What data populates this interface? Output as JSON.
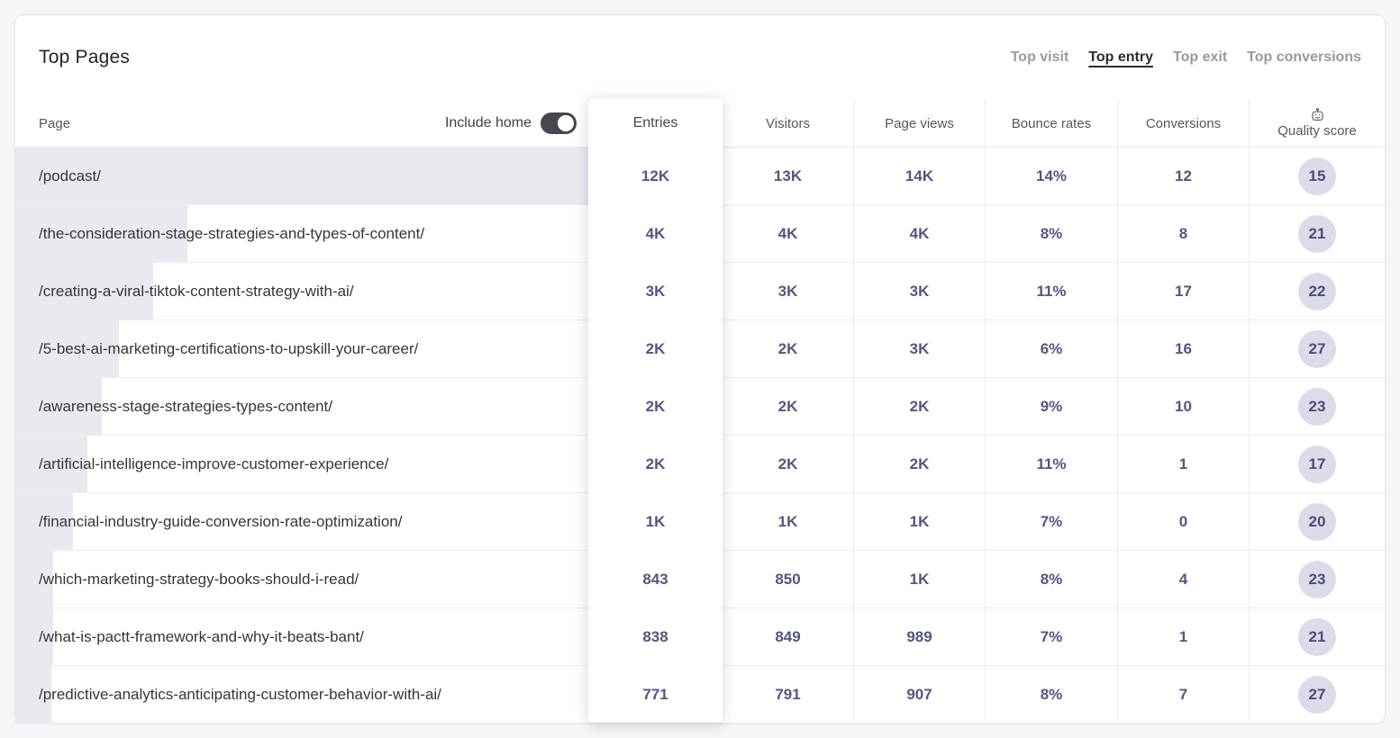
{
  "header": {
    "title": "Top Pages",
    "tabs": [
      {
        "label": "Top visit",
        "active": false
      },
      {
        "label": "Top entry",
        "active": true
      },
      {
        "label": "Top exit",
        "active": false
      },
      {
        "label": "Top conversions",
        "active": false
      }
    ]
  },
  "table": {
    "page_header": "Page",
    "include_home_label": "Include home",
    "include_home_state": "on",
    "columns": {
      "entries": "Entries",
      "visitors": "Visitors",
      "page_views": "Page views",
      "bounce_rates": "Bounce rates",
      "conversions": "Conversions",
      "quality_score": "Quality score"
    },
    "quality_score_icon": "robot-icon",
    "rows": [
      {
        "page": "/podcast/",
        "entries": "12K",
        "visitors": "13K",
        "page_views": "14K",
        "bounce_rate": "14%",
        "conversions": "12",
        "quality_score": "15",
        "bar_pct": 100
      },
      {
        "page": "/the-consideration-stage-strategies-and-types-of-content/",
        "entries": "4K",
        "visitors": "4K",
        "page_views": "4K",
        "bounce_rate": "8%",
        "conversions": "8",
        "quality_score": "21",
        "bar_pct": 30
      },
      {
        "page": "/creating-a-viral-tiktok-content-strategy-with-ai/",
        "entries": "3K",
        "visitors": "3K",
        "page_views": "3K",
        "bounce_rate": "11%",
        "conversions": "17",
        "quality_score": "22",
        "bar_pct": 24
      },
      {
        "page": "/5-best-ai-marketing-certifications-to-upskill-your-career/",
        "entries": "2K",
        "visitors": "2K",
        "page_views": "3K",
        "bounce_rate": "6%",
        "conversions": "16",
        "quality_score": "27",
        "bar_pct": 18
      },
      {
        "page": "/awareness-stage-strategies-types-content/",
        "entries": "2K",
        "visitors": "2K",
        "page_views": "2K",
        "bounce_rate": "9%",
        "conversions": "10",
        "quality_score": "23",
        "bar_pct": 15
      },
      {
        "page": "/artificial-intelligence-improve-customer-experience/",
        "entries": "2K",
        "visitors": "2K",
        "page_views": "2K",
        "bounce_rate": "11%",
        "conversions": "1",
        "quality_score": "17",
        "bar_pct": 12.5
      },
      {
        "page": "/financial-industry-guide-conversion-rate-optimization/",
        "entries": "1K",
        "visitors": "1K",
        "page_views": "1K",
        "bounce_rate": "7%",
        "conversions": "0",
        "quality_score": "20",
        "bar_pct": 10
      },
      {
        "page": "/which-marketing-strategy-books-should-i-read/",
        "entries": "843",
        "visitors": "850",
        "page_views": "1K",
        "bounce_rate": "8%",
        "conversions": "4",
        "quality_score": "23",
        "bar_pct": 6.6
      },
      {
        "page": "/what-is-pactt-framework-and-why-it-beats-bant/",
        "entries": "838",
        "visitors": "849",
        "page_views": "989",
        "bounce_rate": "7%",
        "conversions": "1",
        "quality_score": "21",
        "bar_pct": 6.6
      },
      {
        "page": "/predictive-analytics-anticipating-customer-behavior-with-ai/",
        "entries": "771",
        "visitors": "791",
        "page_views": "907",
        "bounce_rate": "8%",
        "conversions": "7",
        "quality_score": "27",
        "bar_pct": 6.3
      }
    ]
  },
  "colors": {
    "bar": "#e9e9f0",
    "metric_text": "#55567f",
    "badge_bg": "#dcdbe9",
    "badge_text": "#4b4c78",
    "toggle_on": "#45494f",
    "active_tab": "#2b2d34"
  }
}
